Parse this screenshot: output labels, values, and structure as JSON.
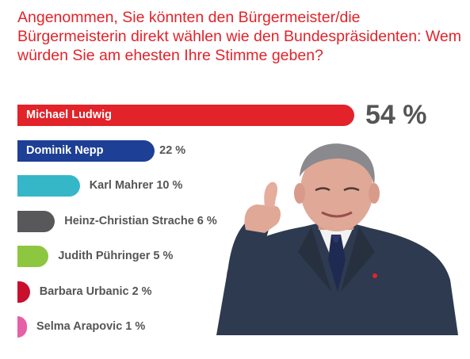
{
  "question": "Angenommen, Sie könnten den Bürgermeister/die Bürgermeisterin direkt wählen wie den Bundespräsidenten: Wem würden Sie am ehesten Ihre Stimme geben?",
  "chart_data": {
    "type": "bar",
    "orientation": "horizontal",
    "title": "Angenommen, Sie könnten den Bürgermeister/die Bürgermeisterin direkt wählen wie den Bundespräsidenten: Wem würden Sie am ehesten Ihre Stimme geben?",
    "categories": [
      "Michael Ludwig",
      "Dominik Nepp",
      "Karl Mahrer",
      "Heinz-Christian Strache",
      "Judith Pühringer",
      "Barbara Urbanic",
      "Selma Arapovic"
    ],
    "values": [
      54,
      22,
      10,
      6,
      5,
      2,
      1
    ],
    "value_labels": [
      "54 %",
      "22 %",
      "10 %",
      "6 %",
      "5 %",
      "2 %",
      "1 %"
    ],
    "colors": [
      "#e2232a",
      "#1d3f95",
      "#36b7c8",
      "#58585a",
      "#8dc63f",
      "#c8102e",
      "#e65fa7"
    ],
    "xlim": [
      0,
      54
    ],
    "grid": false,
    "legend": "none"
  },
  "photo": {
    "description_icon": "person-thumbs-up-photo",
    "tie_color": "#23305a",
    "suit_color": "#2d3747"
  }
}
